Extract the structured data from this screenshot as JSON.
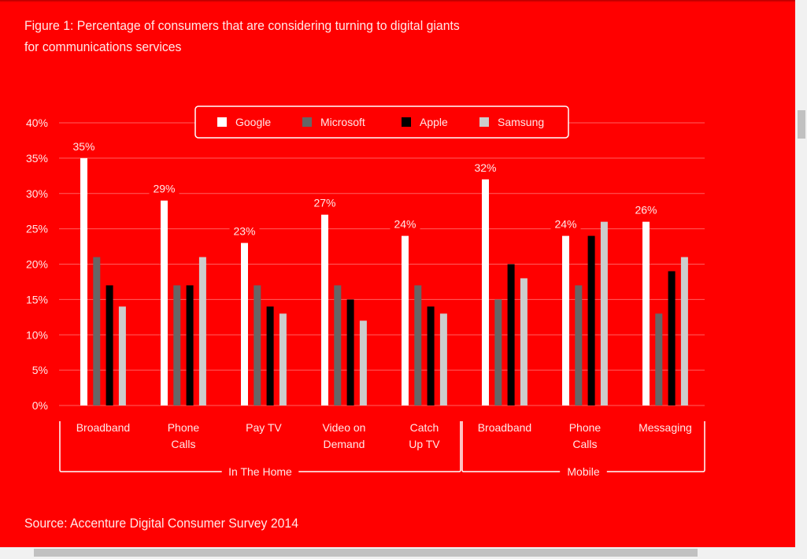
{
  "chart_data": {
    "type": "bar",
    "title": "Figure 1: Percentage of consumers that are considering turning to digital giants for communications services",
    "title_lines": [
      "Figure 1: Percentage of consumers that are considering turning to digital giants",
      "for communications services"
    ],
    "source": "Source: Accenture Digital Consumer Survey 2014",
    "xlabel": "",
    "ylabel": "",
    "ylim": [
      0,
      40
    ],
    "yticks": [
      0,
      5,
      10,
      15,
      20,
      25,
      30,
      35,
      40
    ],
    "ytick_labels": [
      "0%",
      "5%",
      "10%",
      "15%",
      "20%",
      "25%",
      "30%",
      "35%",
      "40%"
    ],
    "grid": true,
    "legend_position": "top-center",
    "categories": [
      "Broadband",
      "Phone Calls",
      "Pay TV",
      "Video on Demand",
      "Catch Up TV",
      "Broadband",
      "Phone Calls",
      "Messaging"
    ],
    "category_lines": [
      [
        "Broadband"
      ],
      [
        "Phone",
        "Calls"
      ],
      [
        "Pay TV"
      ],
      [
        "Video on",
        "Demand"
      ],
      [
        "Catch",
        "Up TV"
      ],
      [
        "Broadband"
      ],
      [
        "Phone",
        "Calls"
      ],
      [
        "Messaging"
      ]
    ],
    "category_groups": [
      {
        "label": "In The Home",
        "start": 0,
        "end": 4
      },
      {
        "label": "Mobile",
        "start": 5,
        "end": 7
      }
    ],
    "series": [
      {
        "name": "Google",
        "color": "#ffffff",
        "values": [
          35,
          29,
          23,
          27,
          24,
          32,
          24,
          26
        ]
      },
      {
        "name": "Microsoft",
        "color": "#666666",
        "values": [
          21,
          17,
          17,
          17,
          17,
          15,
          17,
          13
        ]
      },
      {
        "name": "Apple",
        "color": "#000000",
        "values": [
          17,
          17,
          14,
          15,
          14,
          20,
          24,
          19
        ]
      },
      {
        "name": "Samsung",
        "color": "#cccccc",
        "values": [
          14,
          21,
          13,
          12,
          13,
          18,
          26,
          21
        ]
      }
    ],
    "data_labels": {
      "series": "Google",
      "labels": [
        "35%",
        "29%",
        "23%",
        "27%",
        "24%",
        "32%",
        "24%",
        "26%"
      ]
    }
  },
  "colors": {
    "background": "#ff0000",
    "gridline": "#ff6060",
    "text": "#ffe8e8"
  }
}
